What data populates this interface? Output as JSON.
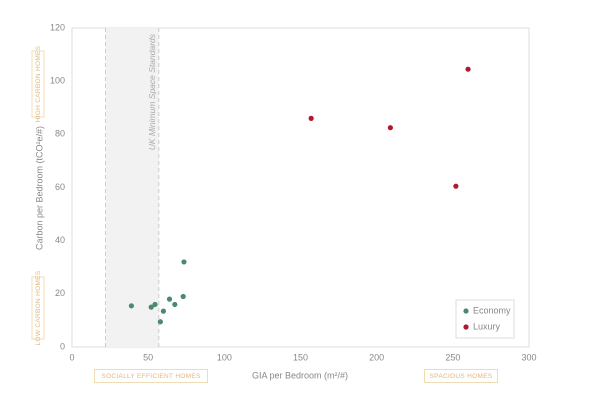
{
  "chart_data": {
    "type": "scatter",
    "x_label": "GIA per Bedroom (m²/#)",
    "y_label": "Carbon per Bedroom (tCO²e/#)",
    "xlim": [
      0,
      300
    ],
    "xticks": [
      0,
      50,
      100,
      150,
      200,
      250,
      300
    ],
    "ylim": [
      0,
      120
    ],
    "yticks": [
      0,
      20,
      40,
      60,
      80,
      100,
      120
    ],
    "grid": false,
    "legend": "lower right",
    "shaded_region": {
      "xlim": [
        22,
        57
      ],
      "label": "UK Minimum Space Standards",
      "color": "#f2f2f2"
    },
    "annotations": [
      "HIGH CARBON HOMES",
      "LOW CARBON HOMES",
      "SOCIALLY EFFICIENT HOMES",
      "SPACIOUS HOMES"
    ],
    "series": [
      {
        "name": "Economy",
        "color": "#4a8a6e",
        "x": [
          39,
          52,
          54.5,
          58,
          60,
          64,
          67.5,
          73,
          73.5
        ],
        "values": [
          15.5,
          15,
          16,
          9.5,
          13.5,
          18,
          16,
          19,
          32
        ]
      },
      {
        "name": "Luxury",
        "color": "#b0182e",
        "x": [
          157,
          209,
          252,
          260
        ],
        "values": [
          86,
          82.5,
          60.5,
          104.5
        ]
      }
    ]
  }
}
